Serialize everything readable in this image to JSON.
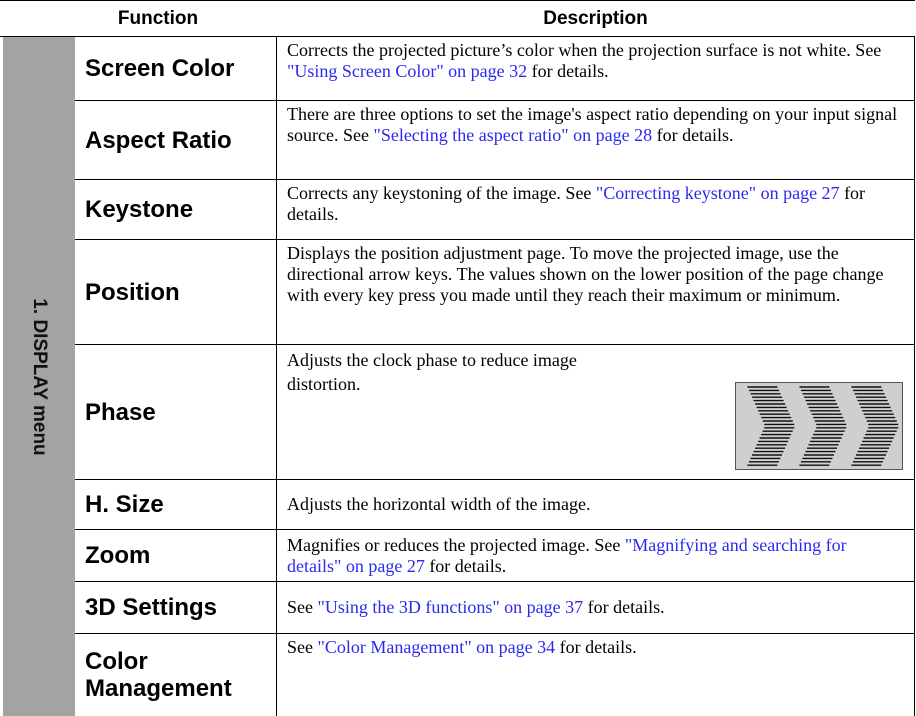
{
  "header": {
    "function": "Function",
    "description": "Description"
  },
  "section": "1. DISPLAY menu",
  "rows": [
    {
      "function": "Screen Color",
      "description": [
        {
          "text": "Corrects the projected picture’s color when the projection surface is not white. See "
        },
        {
          "link": "\"Using Screen Color\" on page 32"
        },
        {
          "text": " for details."
        }
      ]
    },
    {
      "function": "Aspect Ratio",
      "description": [
        {
          "text": "There are three options to set the image's aspect ratio depending on your input signal source. See "
        },
        {
          "link": "\"Selecting the aspect ratio\" on page 28"
        },
        {
          "text": " for details."
        }
      ]
    },
    {
      "function": "Keystone",
      "description": [
        {
          "text": "Corrects any keystoning of the image. See "
        },
        {
          "link": "\"Correcting keystone\" on page 27"
        },
        {
          "text": " for details."
        }
      ]
    },
    {
      "function": "Position",
      "description": [
        {
          "text": "Displays the position adjustment page. To move the projected image, use the directional arrow keys. The values shown on the lower position of the page change with every key press you made until they reach their maximum or minimum."
        }
      ]
    },
    {
      "function": "Phase",
      "description": [
        {
          "text": "Adjusts the clock phase to reduce image distortion."
        }
      ]
    },
    {
      "function": "H. Size",
      "description": [
        {
          "text": "Adjusts the horizontal width of the image."
        }
      ]
    },
    {
      "function": "Zoom",
      "description": [
        {
          "text": "Magnifies or reduces the projected image. See "
        },
        {
          "link": "\"Magnifying and searching for details\" on page 27"
        },
        {
          "text": " for details."
        }
      ]
    },
    {
      "function": "3D Settings",
      "description": [
        {
          "text": "See "
        },
        {
          "link": "\"Using the 3D functions\" on page 37"
        },
        {
          "text": " for details."
        }
      ]
    },
    {
      "function": "Color Management",
      "description": [
        {
          "text": "See "
        },
        {
          "link": "\"Color Management\" on page 34"
        },
        {
          "text": " for details."
        }
      ]
    }
  ]
}
